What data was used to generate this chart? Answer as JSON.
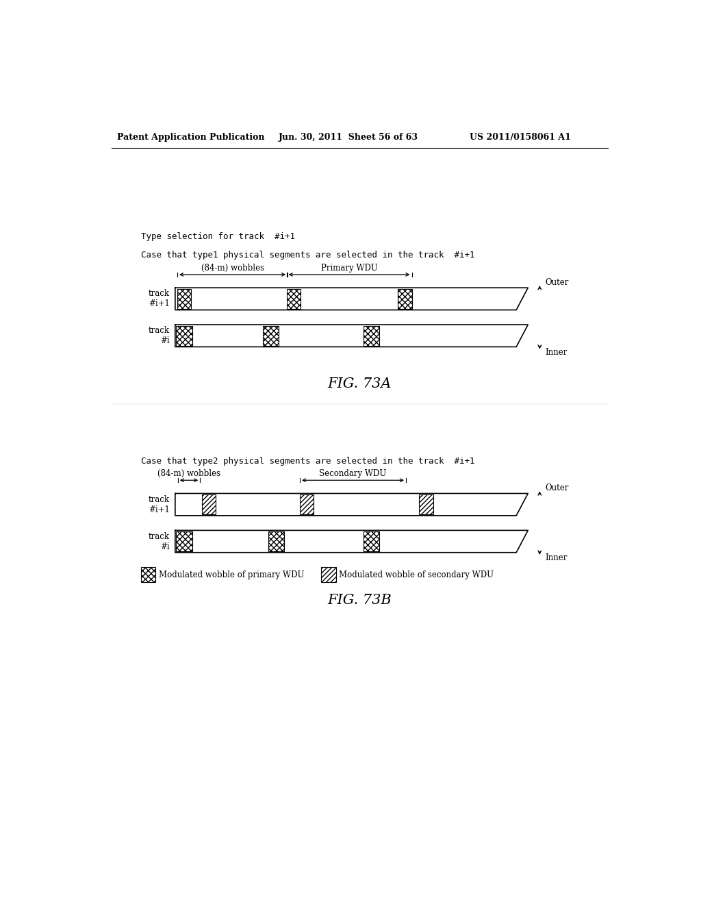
{
  "header_left": "Patent Application Publication",
  "header_mid": "Jun. 30, 2011  Sheet 56 of 63",
  "header_right": "US 2011/0158061 A1",
  "title_A": "FIG. 73A",
  "title_B": "FIG. 73B",
  "section_title": "Type selection for track  #i+1",
  "case_A": "Case that type1 physical segments are selected in the track  #i+1",
  "case_B": "Case that type2 physical segments are selected in the track  #i+1",
  "label_84m": "(84-m) wobbles",
  "label_primary": "Primary WDU",
  "label_secondary": "Secondary WDU",
  "label_outer": "Outer",
  "label_inner": "Inner",
  "label_track_ip1": "track\n#i+1",
  "label_track_i": "track\n#i",
  "legend_primary": "Modulated wobble of primary WDU",
  "legend_secondary": "Modulated wobble of secondary WDU",
  "background_color": "#ffffff"
}
